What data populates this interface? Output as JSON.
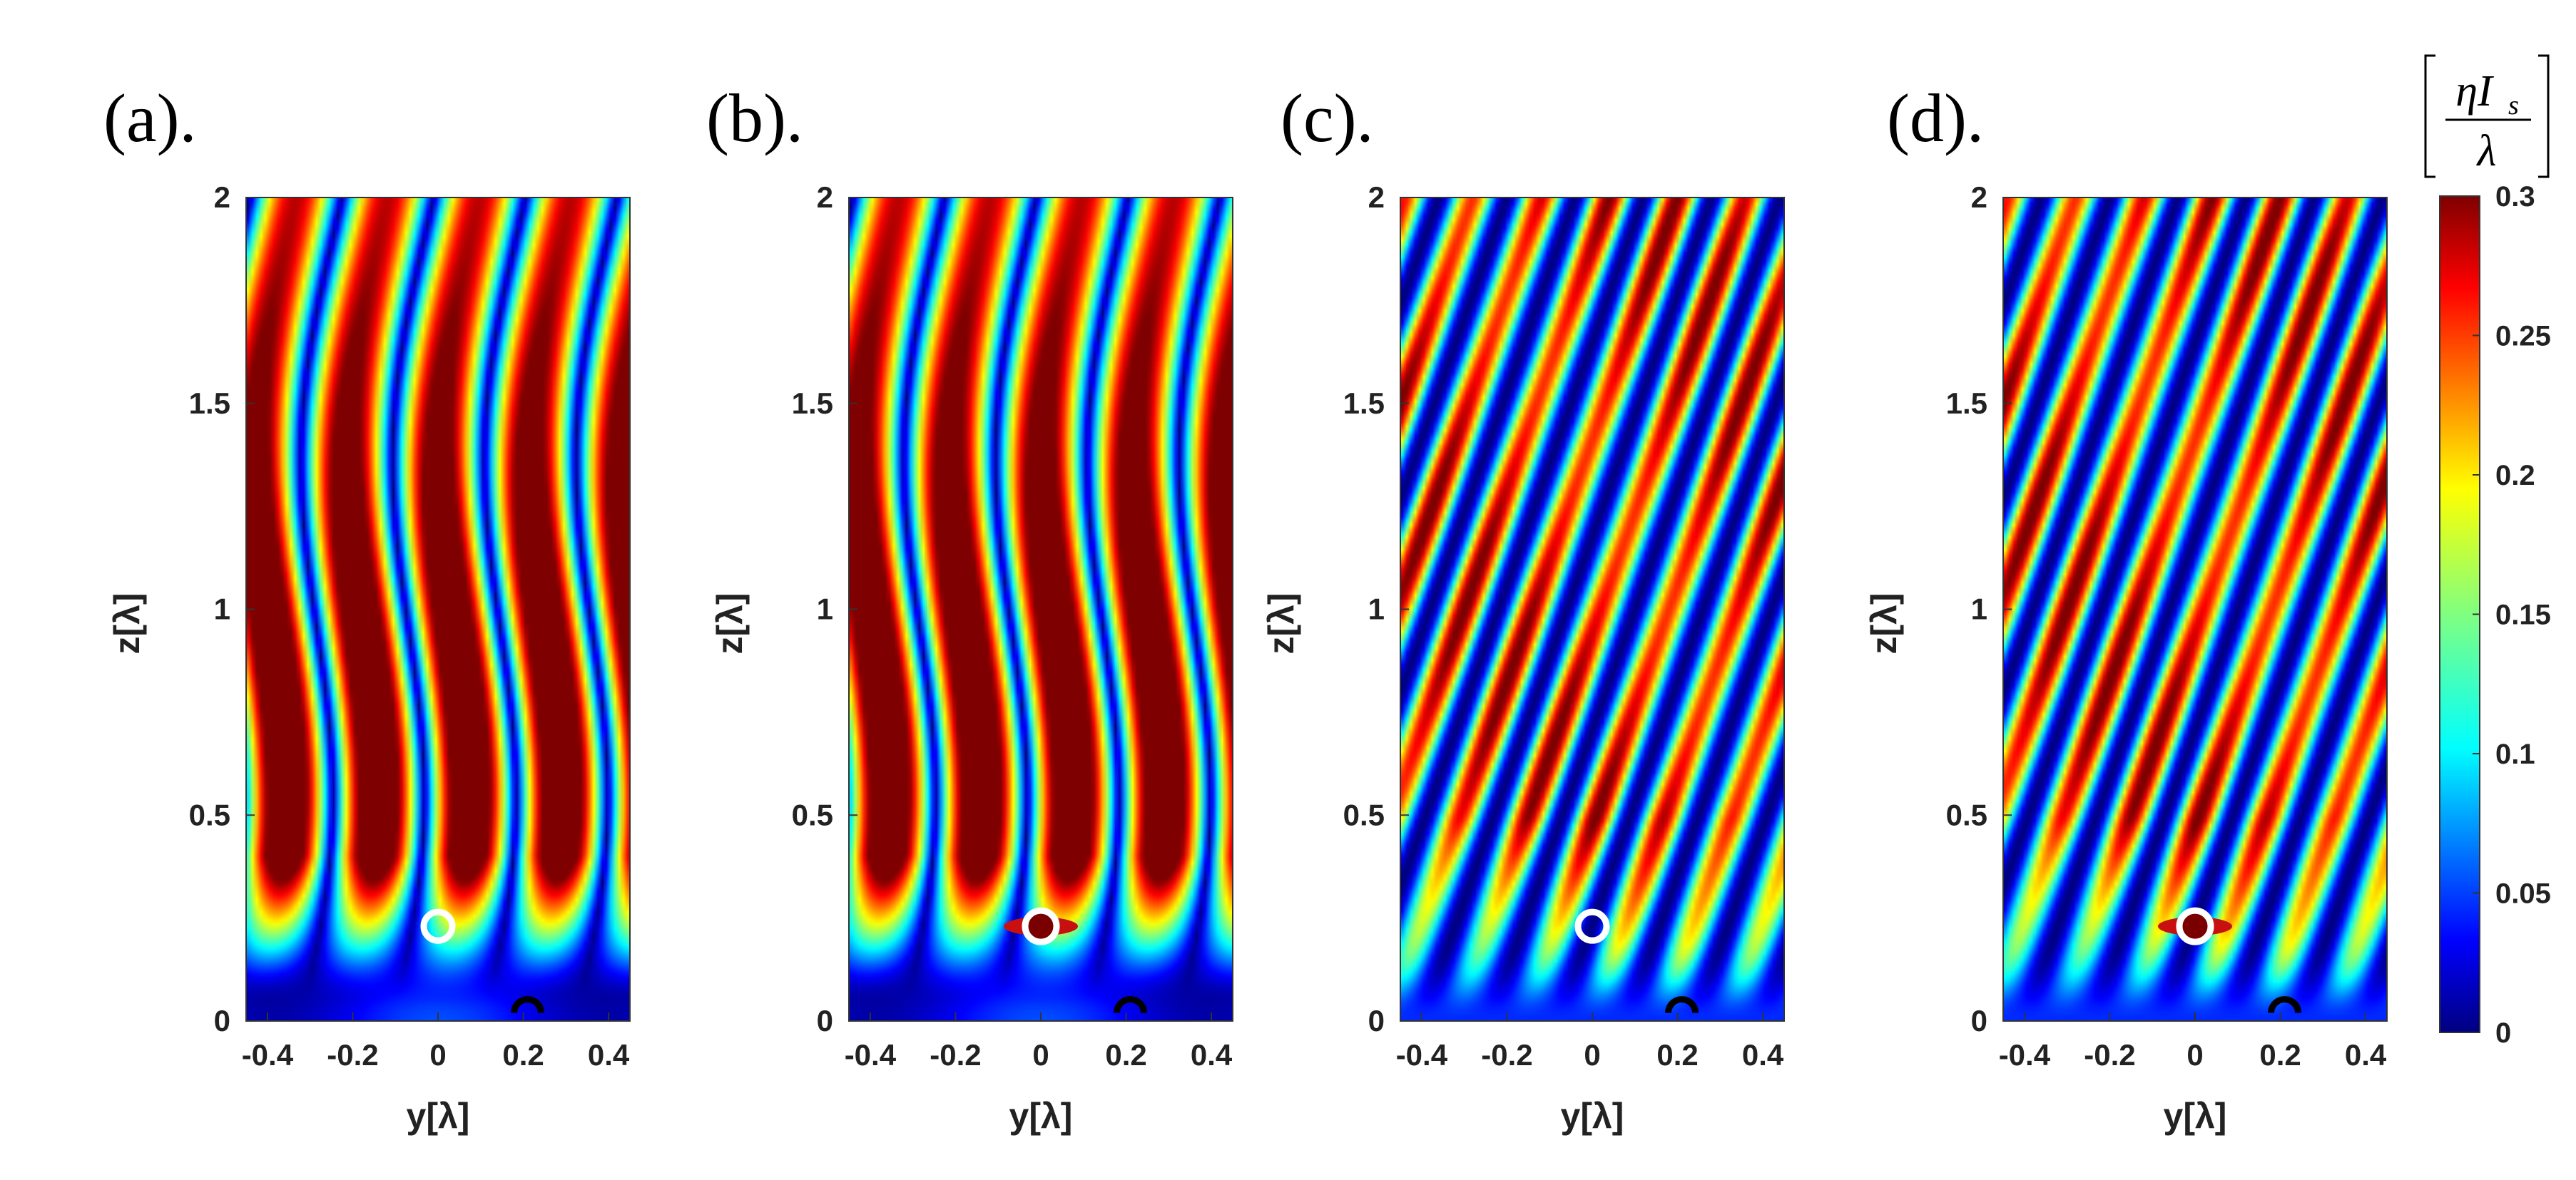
{
  "figure": {
    "colorbar": {
      "unit_label": "[ηI_s / λ]",
      "unit_numerator": "ηI",
      "unit_subscript": "s",
      "unit_denominator": "λ",
      "range": [
        0,
        0.3
      ],
      "ticks": [
        "0.3",
        "0.25",
        "0.2",
        "0.15",
        "0.1",
        "0.05",
        "0"
      ],
      "colormap": "jet"
    }
  },
  "chart_data": [
    {
      "type": "heatmap",
      "panel_label": "(a).",
      "xlabel": "y[λ]",
      "ylabel": "z[λ]",
      "xlim": [
        -0.45,
        0.45
      ],
      "ylim": [
        0,
        2
      ],
      "xticks": [
        "-0.4",
        "-0.2",
        "0",
        "0.2",
        "0.4"
      ],
      "yticks": [
        "0",
        "0.5",
        "1",
        "1.5",
        "2"
      ],
      "pattern": "vertical-fringes",
      "markers": [
        {
          "type": "white-ring",
          "y": 0.0,
          "z": 0.23
        },
        {
          "type": "black-arc",
          "y": 0.21,
          "z": 0.03
        }
      ]
    },
    {
      "type": "heatmap",
      "panel_label": "(b).",
      "xlabel": "y[λ]",
      "ylabel": "z[λ]",
      "xlim": [
        -0.45,
        0.45
      ],
      "ylim": [
        0,
        2
      ],
      "xticks": [
        "-0.4",
        "-0.2",
        "0",
        "0.2",
        "0.4"
      ],
      "yticks": [
        "0",
        "0.5",
        "1",
        "1.5",
        "2"
      ],
      "pattern": "vertical-fringes",
      "markers": [
        {
          "type": "white-ring-with-hotspot",
          "y": 0.0,
          "z": 0.23
        },
        {
          "type": "black-arc",
          "y": 0.21,
          "z": 0.03
        }
      ]
    },
    {
      "type": "heatmap",
      "panel_label": "(c).",
      "xlabel": "y[λ]",
      "ylabel": "z[λ]",
      "xlim": [
        -0.45,
        0.45
      ],
      "ylim": [
        0,
        2
      ],
      "xticks": [
        "-0.4",
        "-0.2",
        "0",
        "0.2",
        "0.4"
      ],
      "yticks": [
        "0",
        "0.5",
        "1",
        "1.5",
        "2"
      ],
      "pattern": "tilted-fringes",
      "markers": [
        {
          "type": "white-ring",
          "y": 0.0,
          "z": 0.23
        },
        {
          "type": "black-arc",
          "y": 0.21,
          "z": 0.03
        }
      ]
    },
    {
      "type": "heatmap",
      "panel_label": "(d).",
      "xlabel": "y[λ]",
      "ylabel": "z[λ]",
      "xlim": [
        -0.45,
        0.45
      ],
      "ylim": [
        0,
        2
      ],
      "xticks": [
        "-0.4",
        "-0.2",
        "0",
        "0.2",
        "0.4"
      ],
      "yticks": [
        "0",
        "0.5",
        "1",
        "1.5",
        "2"
      ],
      "pattern": "tilted-fringes",
      "markers": [
        {
          "type": "white-ring-with-hotspot",
          "y": 0.0,
          "z": 0.23
        },
        {
          "type": "black-arc",
          "y": 0.21,
          "z": 0.03
        }
      ]
    }
  ]
}
